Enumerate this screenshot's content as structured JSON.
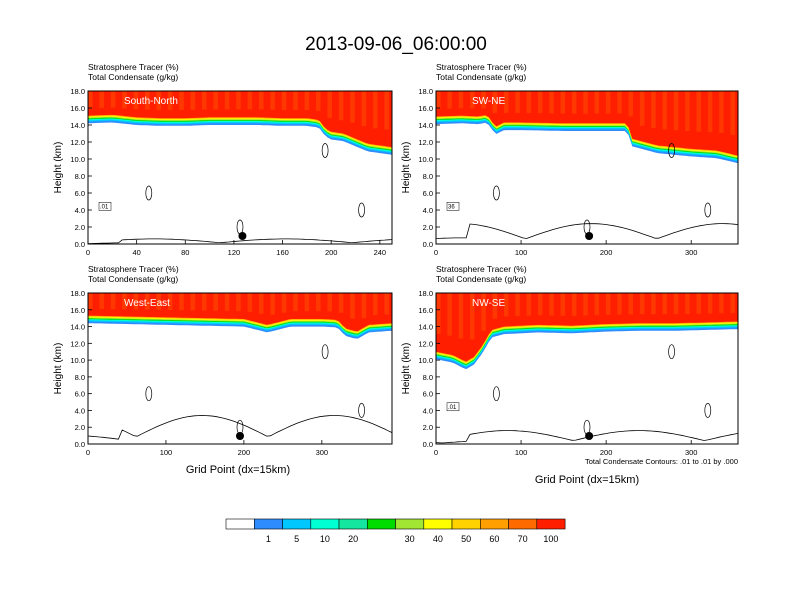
{
  "title": "2013-09-06_06:00:00",
  "panel_header": [
    "Stratosphere Tracer   (%)",
    "Total Condensate   (g/kg)"
  ],
  "ylabel": "Height (km)",
  "xlabel": "Grid Point (dx=15km)",
  "contour_note": "Total Condensate Contours: .01 to .01 by .000",
  "colorbar": {
    "colors": [
      "#ffffff",
      "#2e8cff",
      "#00c8ff",
      "#00ffd2",
      "#14e6a0",
      "#00dc00",
      "#a0e632",
      "#ffff00",
      "#ffd200",
      "#ffa000",
      "#ff6a00",
      "#ff1e00"
    ],
    "labels": [
      "1",
      "5",
      "10",
      "20",
      "30",
      "40",
      "50",
      "60",
      "70",
      "100"
    ]
  },
  "chart_data": [
    {
      "type": "heatmap",
      "panel": "South-North",
      "label": "South-North",
      "xlim": [
        0,
        250
      ],
      "ylim": [
        0,
        18
      ],
      "xticks": [
        0,
        40,
        80,
        120,
        160,
        200,
        240
      ],
      "yticks": [
        0,
        2,
        4,
        6,
        8,
        10,
        12,
        14,
        16,
        18
      ],
      "ytick_labels": [
        "0.0",
        "2.0",
        "4.0",
        "6.0",
        "8.0",
        "10.0",
        "12.0",
        "14.0",
        "16.0",
        "18.0"
      ],
      "tracer_100_base_km": [
        [
          0,
          15.1
        ],
        [
          20,
          15.2
        ],
        [
          40,
          14.9
        ],
        [
          60,
          14.8
        ],
        [
          80,
          14.8
        ],
        [
          100,
          14.9
        ],
        [
          120,
          14.9
        ],
        [
          140,
          14.9
        ],
        [
          160,
          14.8
        ],
        [
          180,
          14.8
        ],
        [
          190,
          14.6
        ],
        [
          195,
          13.6
        ],
        [
          200,
          13.2
        ],
        [
          210,
          13.0
        ],
        [
          220,
          12.4
        ],
        [
          230,
          11.8
        ],
        [
          240,
          11.6
        ],
        [
          250,
          11.4
        ]
      ],
      "contour_labels": [
        ".01"
      ],
      "marker_x": 127,
      "terrain_max_km": 0.6
    },
    {
      "type": "heatmap",
      "panel": "SW-NE",
      "label": "SW-NE",
      "xlim": [
        0,
        355
      ],
      "ylim": [
        0,
        18
      ],
      "xticks": [
        0,
        100,
        200,
        300
      ],
      "yticks": [
        0,
        2,
        4,
        6,
        8,
        10,
        12,
        14,
        16,
        18
      ],
      "ytick_labels": [
        "0.0",
        "2.0",
        "4.0",
        "6.0",
        "8.0",
        "10.0",
        "12.0",
        "14.0",
        "16.0",
        "18.0"
      ],
      "tracer_100_base_km": [
        [
          0,
          15.0
        ],
        [
          30,
          15.1
        ],
        [
          50,
          15.0
        ],
        [
          60,
          15.2
        ],
        [
          70,
          13.8
        ],
        [
          80,
          14.3
        ],
        [
          100,
          14.3
        ],
        [
          150,
          14.2
        ],
        [
          200,
          14.2
        ],
        [
          225,
          14.2
        ],
        [
          230,
          12.4
        ],
        [
          260,
          11.6
        ],
        [
          300,
          11.2
        ],
        [
          330,
          11.0
        ],
        [
          355,
          10.4
        ]
      ],
      "contour_labels": [
        "36"
      ],
      "marker_x": 180,
      "terrain_max_km": 2.4
    },
    {
      "type": "heatmap",
      "panel": "West-East",
      "label": "West-East",
      "xlim": [
        0,
        390
      ],
      "ylim": [
        0,
        18
      ],
      "xticks": [
        0,
        100,
        200,
        300
      ],
      "yticks": [
        0,
        2,
        4,
        6,
        8,
        10,
        12,
        14,
        16,
        18
      ],
      "ytick_labels": [
        "0.0",
        "2.0",
        "4.0",
        "6.0",
        "8.0",
        "10.0",
        "12.0",
        "14.0",
        "16.0",
        "18.0"
      ],
      "tracer_100_base_km": [
        [
          0,
          15.3
        ],
        [
          50,
          15.2
        ],
        [
          100,
          15.1
        ],
        [
          150,
          15.0
        ],
        [
          200,
          14.9
        ],
        [
          230,
          14.2
        ],
        [
          260,
          14.9
        ],
        [
          300,
          14.9
        ],
        [
          320,
          14.8
        ],
        [
          330,
          13.8
        ],
        [
          345,
          13.4
        ],
        [
          360,
          14.2
        ],
        [
          390,
          14.4
        ]
      ],
      "contour_labels": [],
      "marker_x": 195,
      "terrain_max_km": 3.4
    },
    {
      "type": "heatmap",
      "panel": "NW-SE",
      "label": "NW-SE",
      "xlim": [
        0,
        355
      ],
      "ylim": [
        0,
        18
      ],
      "xticks": [
        0,
        100,
        200,
        300
      ],
      "yticks": [
        0,
        2,
        4,
        6,
        8,
        10,
        12,
        14,
        16,
        18
      ],
      "ytick_labels": [
        "0.0",
        "2.0",
        "4.0",
        "6.0",
        "8.0",
        "10.0",
        "12.0",
        "14.0",
        "16.0",
        "18.0"
      ],
      "tracer_100_base_km": [
        [
          0,
          11.0
        ],
        [
          20,
          10.6
        ],
        [
          35,
          9.8
        ],
        [
          45,
          10.4
        ],
        [
          55,
          11.8
        ],
        [
          65,
          13.6
        ],
        [
          80,
          14.0
        ],
        [
          120,
          14.2
        ],
        [
          160,
          14.1
        ],
        [
          200,
          14.3
        ],
        [
          240,
          14.4
        ],
        [
          280,
          14.4
        ],
        [
          320,
          14.5
        ],
        [
          355,
          14.6
        ]
      ],
      "contour_labels": [
        ".01"
      ],
      "marker_x": 180,
      "terrain_max_km": 1.6
    }
  ]
}
